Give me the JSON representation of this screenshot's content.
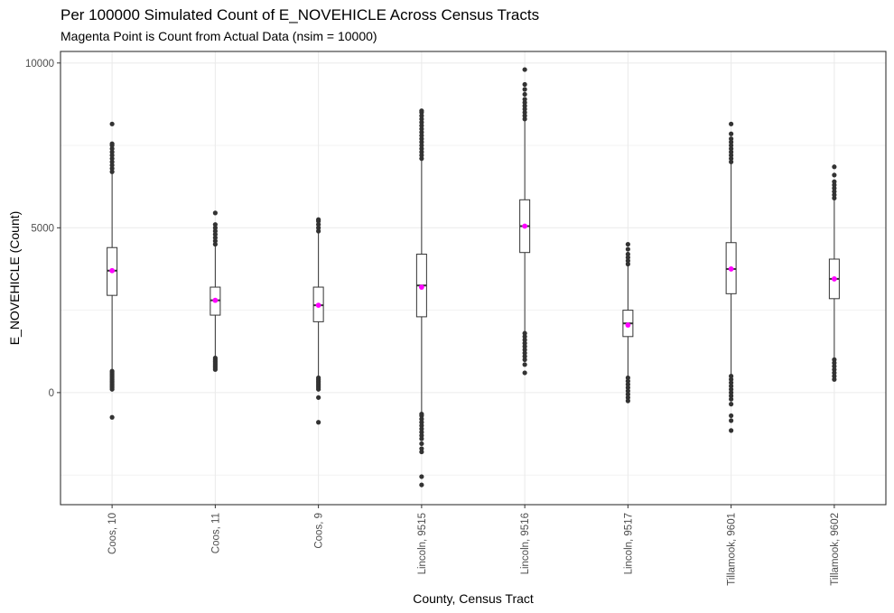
{
  "chart_data": {
    "type": "box",
    "title": "Per 100000 Simulated Count of E_NOVEHICLE Across Census Tracts",
    "subtitle": "Magenta Point is Count from Actual Data (nsim = 10000)",
    "xlabel": "County, Census Tract",
    "ylabel": "E_NOVEHICLE (Count)",
    "ylim": [
      -3400,
      10350
    ],
    "y_ticks": [
      0,
      5000,
      10000
    ],
    "y_tick_labels": [
      "0",
      "5000",
      "10000"
    ],
    "grid": true,
    "colors": {
      "box": "#333333",
      "outlier": "#333333",
      "actual_point": "#ff00ff",
      "grid": "#ebebeb"
    },
    "categories": [
      "Coos, 10",
      "Coos, 11",
      "Coos, 9",
      "Lincoln, 9515",
      "Lincoln, 9516",
      "Lincoln, 9517",
      "Tillamook, 9601",
      "Tillamook, 9602"
    ],
    "boxes": [
      {
        "q1": 2950,
        "median": 3700,
        "q3": 4400,
        "whisker_low": 700,
        "whisker_high": 6650,
        "actual": 3700,
        "outliers_low": [
          650,
          600,
          550,
          500,
          450,
          400,
          350,
          300,
          250,
          200,
          150,
          100,
          -750
        ],
        "outliers_high": [
          6700,
          6800,
          6900,
          7000,
          7100,
          7200,
          7300,
          7400,
          7500,
          7550,
          8150
        ]
      },
      {
        "q1": 2350,
        "median": 2800,
        "q3": 3200,
        "whisker_low": 1100,
        "whisker_high": 4450,
        "actual": 2800,
        "outliers_low": [
          1050,
          1000,
          950,
          900,
          850,
          800,
          750,
          700
        ],
        "outliers_high": [
          4500,
          4600,
          4700,
          4800,
          4900,
          5000,
          5100,
          5450
        ]
      },
      {
        "q1": 2150,
        "median": 2650,
        "q3": 3200,
        "whisker_low": 500,
        "whisker_high": 4850,
        "actual": 2650,
        "outliers_low": [
          450,
          400,
          350,
          300,
          250,
          200,
          150,
          100,
          -150,
          -900
        ],
        "outliers_high": [
          4900,
          5000,
          5100,
          5200,
          5250
        ]
      },
      {
        "q1": 2300,
        "median": 3250,
        "q3": 4200,
        "whisker_low": -600,
        "whisker_high": 7050,
        "actual": 3200,
        "outliers_low": [
          -650,
          -700,
          -800,
          -900,
          -1000,
          -1100,
          -1200,
          -1300,
          -1400,
          -1550,
          -1700,
          -1800,
          -2550,
          -2800
        ],
        "outliers_high": [
          7100,
          7200,
          7300,
          7400,
          7500,
          7600,
          7700,
          7800,
          7900,
          8000,
          8100,
          8200,
          8300,
          8400,
          8500,
          8550
        ]
      },
      {
        "q1": 4250,
        "median": 5050,
        "q3": 5850,
        "whisker_low": 1850,
        "whisker_high": 8250,
        "actual": 5050,
        "outliers_low": [
          1800,
          1700,
          1600,
          1500,
          1400,
          1300,
          1200,
          1100,
          1000,
          850,
          600
        ],
        "outliers_high": [
          8300,
          8400,
          8500,
          8600,
          8700,
          8800,
          8900,
          9050,
          9200,
          9350,
          9800
        ]
      },
      {
        "q1": 1700,
        "median": 2100,
        "q3": 2500,
        "whisker_low": 500,
        "whisker_high": 3850,
        "actual": 2050,
        "outliers_low": [
          450,
          350,
          250,
          150,
          50,
          -50,
          -150,
          -250
        ],
        "outliers_high": [
          3900,
          4000,
          4100,
          4200,
          4350,
          4500
        ]
      },
      {
        "q1": 3000,
        "median": 3750,
        "q3": 4550,
        "whisker_low": 550,
        "whisker_high": 6950,
        "actual": 3750,
        "outliers_low": [
          500,
          400,
          300,
          200,
          100,
          0,
          -100,
          -200,
          -350,
          -700,
          -850,
          -1150
        ],
        "outliers_high": [
          7000,
          7100,
          7200,
          7300,
          7400,
          7500,
          7600,
          7700,
          7850,
          8150
        ]
      },
      {
        "q1": 2850,
        "median": 3450,
        "q3": 4050,
        "whisker_low": 1050,
        "whisker_high": 5850,
        "actual": 3450,
        "outliers_low": [
          1000,
          900,
          800,
          700,
          600,
          500,
          400
        ],
        "outliers_high": [
          5900,
          6000,
          6100,
          6200,
          6300,
          6400,
          6600,
          6850
        ]
      }
    ]
  }
}
